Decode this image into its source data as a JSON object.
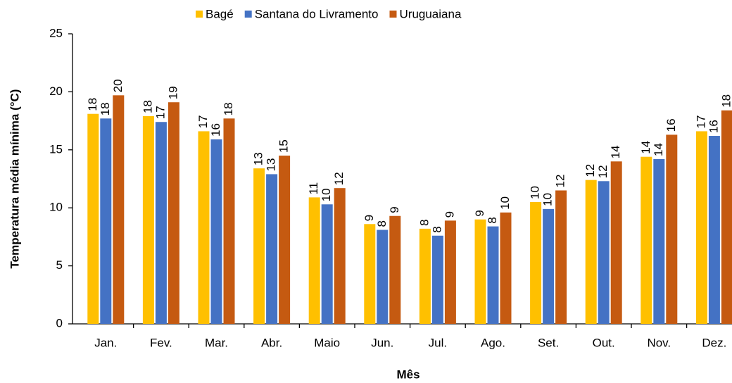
{
  "chart_data": {
    "type": "bar",
    "xlabel": "Mês",
    "ylabel": "Temperatura média mínima (°C)",
    "categories": [
      "Jan.",
      "Fev.",
      "Mar.",
      "Abr.",
      "Maio",
      "Jun.",
      "Jul.",
      "Ago.",
      "Set.",
      "Out.",
      "Nov.",
      "Dez."
    ],
    "series": [
      {
        "name": "Bagé",
        "color": "#ffc000",
        "values": [
          18.1,
          17.9,
          16.6,
          13.4,
          10.9,
          8.6,
          8.2,
          9.0,
          10.5,
          12.4,
          14.4,
          16.6
        ],
        "value_labels": [
          "18",
          "18",
          "17",
          "13",
          "11",
          "9",
          "8",
          "9",
          "10",
          "12",
          "14",
          "17"
        ]
      },
      {
        "name": "Santana do Livramento",
        "color": "#4472c4",
        "values": [
          17.7,
          17.4,
          15.9,
          12.9,
          10.3,
          8.1,
          7.6,
          8.4,
          9.9,
          12.3,
          14.2,
          16.2
        ],
        "value_labels": [
          "18",
          "17",
          "16",
          "13",
          "10",
          "8",
          "8",
          "8",
          "10",
          "12",
          "14",
          "16"
        ]
      },
      {
        "name": "Uruguaiana",
        "color": "#c55a11",
        "values": [
          19.7,
          19.1,
          17.7,
          14.5,
          11.7,
          9.3,
          8.9,
          9.6,
          11.5,
          14.0,
          16.3,
          18.4
        ],
        "value_labels": [
          "20",
          "19",
          "18",
          "15",
          "12",
          "9",
          "9",
          "10",
          "12",
          "14",
          "16",
          "18"
        ]
      }
    ],
    "ylim": [
      0,
      25
    ],
    "yticks": [
      0,
      5,
      10,
      15,
      20,
      25
    ],
    "legend": "top"
  }
}
